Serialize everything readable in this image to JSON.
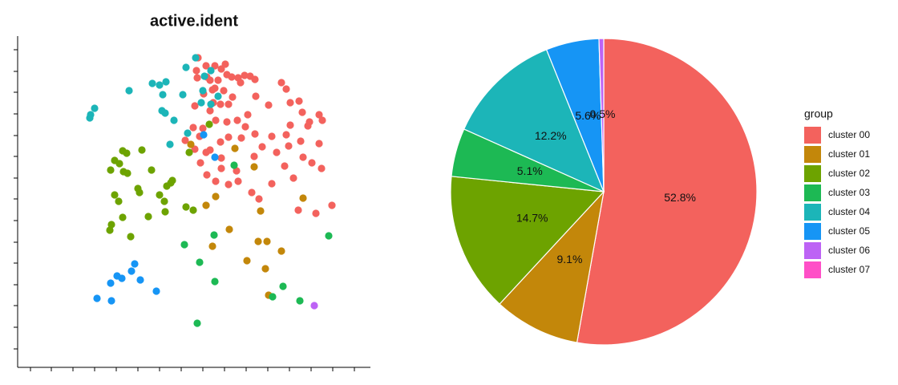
{
  "chart_data": [
    {
      "type": "scatter",
      "title": "active.ident",
      "xlim": [
        0,
        440
      ],
      "ylim": [
        0,
        413
      ],
      "xticks": [
        16,
        42,
        69,
        96,
        123,
        150,
        177,
        204,
        231,
        258,
        285,
        312,
        339,
        366,
        393,
        420
      ],
      "yticks": [
        23,
        50,
        77,
        103,
        130,
        156,
        183,
        210,
        236,
        263,
        289,
        316,
        343,
        369,
        396
      ],
      "series": [
        {
          "color": "#F3625D",
          "x": [
            225,
            235,
            223,
            246,
            254,
            259,
            267,
            275,
            283,
            290,
            296,
            278,
            261,
            250,
            240,
            224,
            236,
            246,
            257,
            268,
            253,
            244,
            232,
            221,
            240,
            263,
            274,
            287,
            297,
            313,
            329,
            335,
            340,
            351,
            355,
            376,
            380,
            362,
            364,
            340,
            335,
            317,
            305,
            296,
            284,
            261,
            247,
            231,
            219,
            209,
            227,
            240,
            221,
            235,
            253,
            263,
            279,
            295,
            323,
            338,
            353,
            376,
            367,
            379,
            356,
            333,
            317,
            344,
            350,
            301,
            292,
            275,
            263,
            254,
            247,
            236,
            228,
            254,
            372,
            392,
            273,
            243
          ],
          "values": [
            386,
            376,
            370,
            376,
            372,
            378,
            362,
            361,
            364,
            363,
            359,
            355,
            365,
            358,
            358,
            361,
            362,
            348,
            345,
            337,
            328,
            330,
            341,
            326,
            320,
            328,
            308,
            315,
            338,
            327,
            355,
            347,
            330,
            332,
            318,
            315,
            308,
            301,
            306,
            302,
            290,
            288,
            275,
            291,
            300,
            306,
            308,
            298,
            299,
            283,
            288,
            271,
            272,
            268,
            281,
            287,
            286,
            263,
            268,
            276,
            282,
            279,
            255,
            248,
            262,
            251,
            229,
            236,
            196,
            210,
            218,
            232,
            228,
            248,
            232,
            240,
            255,
            261,
            192,
            202,
            245,
            346
          ]
        },
        {
          "color": "#C3870A",
          "x": [
            271,
            295,
            216,
            247,
            235,
            303,
            356,
            264,
            243,
            300,
            311,
            286,
            309,
            313,
            329
          ],
          "values": [
            273,
            250,
            278,
            213,
            202,
            195,
            211,
            172,
            151,
            157,
            157,
            133,
            123,
            90,
            145
          ]
        },
        {
          "color": "#6DA300",
          "x": [
            239,
            214,
            131,
            136,
            121,
            127,
            116,
            132,
            137,
            155,
            167,
            150,
            152,
            191,
            193,
            186,
            121,
            126,
            177,
            183,
            163,
            184,
            210,
            219,
            131,
            117,
            115,
            141
          ],
          "values": [
            303,
            268,
            270,
            267,
            258,
            254,
            246,
            244,
            242,
            271,
            246,
            223,
            218,
            230,
            233,
            226,
            215,
            207,
            215,
            207,
            188,
            194,
            200,
            196,
            187,
            178,
            171,
            163
          ]
        },
        {
          "color": "#1DB954",
          "x": [
            270,
            388,
            245,
            208,
            227,
            246,
            331,
            318,
            352,
            224
          ],
          "values": [
            252,
            164,
            165,
            153,
            131,
            107,
            101,
            88,
            83,
            55
          ]
        },
        {
          "color": "#1CB5B8",
          "x": [
            222,
            241,
            210,
            233,
            168,
            177,
            185,
            139,
            181,
            206,
            231,
            250,
            96,
            91,
            90,
            180,
            184,
            195,
            212,
            190,
            229,
            241
          ],
          "values": [
            386,
            370,
            374,
            363,
            354,
            352,
            356,
            345,
            340,
            340,
            345,
            338,
            323,
            315,
            311,
            320,
            317,
            308,
            292,
            278,
            330,
            328
          ]
        },
        {
          "color": "#1695F5",
          "x": [
            246,
            232,
            146,
            142,
            124,
            130,
            153,
            173,
            116,
            99,
            117
          ],
          "values": [
            262,
            290,
            129,
            120,
            114,
            111,
            109,
            95,
            105,
            86,
            83
          ]
        },
        {
          "color": "#BD63F5",
          "x": [
            370
          ],
          "values": [
            77
          ]
        }
      ]
    },
    {
      "type": "pie",
      "legend_title": "group",
      "legend": "right",
      "categories": [
        "cluster 00",
        "cluster 01",
        "cluster 02",
        "cluster 03",
        "cluster 04",
        "cluster 05",
        "cluster 06",
        "cluster 07"
      ],
      "values": [
        52.8,
        9.1,
        14.7,
        5.1,
        12.2,
        5.6,
        0.5,
        0
      ],
      "value_labels": [
        "52.8%",
        "9.1%",
        "14.7%",
        "5.1%",
        "12.2%",
        "5.6%",
        "0.5%",
        null
      ],
      "colors": [
        "#F3625D",
        "#C3870A",
        "#6DA300",
        "#1DB954",
        "#1CB5B8",
        "#1695F5",
        "#BD63F5",
        "#FF4FC7"
      ]
    }
  ]
}
